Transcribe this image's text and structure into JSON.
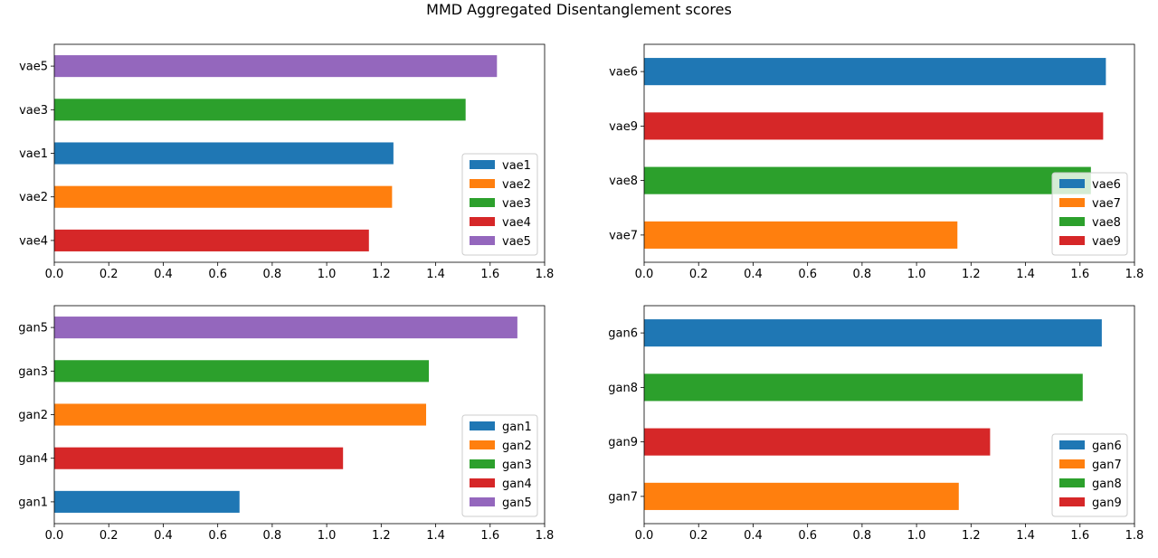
{
  "figure": {
    "suptitle": "MMD Aggregated Disentanglement scores"
  },
  "colors": {
    "blue": "#1f77b4",
    "orange": "#ff7f0e",
    "green": "#2ca02c",
    "red": "#d62728",
    "purple": "#9467bd"
  },
  "chart_data": [
    {
      "type": "bar",
      "orientation": "horizontal",
      "categories": [
        "vae4",
        "vae2",
        "vae1",
        "vae3",
        "vae5"
      ],
      "values": [
        1.155,
        1.24,
        1.245,
        1.51,
        1.625
      ],
      "bar_colors": [
        "#d62728",
        "#ff7f0e",
        "#1f77b4",
        "#2ca02c",
        "#9467bd"
      ],
      "xlim": [
        0,
        1.8
      ],
      "xticks": [
        "0.0",
        "0.2",
        "0.4",
        "0.6",
        "0.8",
        "1.0",
        "1.2",
        "1.4",
        "1.6",
        "1.8"
      ],
      "legend": {
        "position": "lower-right",
        "entries": [
          {
            "label": "vae1",
            "color": "#1f77b4"
          },
          {
            "label": "vae2",
            "color": "#ff7f0e"
          },
          {
            "label": "vae3",
            "color": "#2ca02c"
          },
          {
            "label": "vae4",
            "color": "#d62728"
          },
          {
            "label": "vae5",
            "color": "#9467bd"
          }
        ]
      },
      "grid": false
    },
    {
      "type": "bar",
      "orientation": "horizontal",
      "categories": [
        "vae7",
        "vae8",
        "vae9",
        "vae6"
      ],
      "values": [
        1.15,
        1.64,
        1.685,
        1.695
      ],
      "bar_colors": [
        "#ff7f0e",
        "#2ca02c",
        "#d62728",
        "#1f77b4"
      ],
      "xlim": [
        0,
        1.8
      ],
      "xticks": [
        "0.0",
        "0.2",
        "0.4",
        "0.6",
        "0.8",
        "1.0",
        "1.2",
        "1.4",
        "1.6",
        "1.8"
      ],
      "legend": {
        "position": "lower-right",
        "entries": [
          {
            "label": "vae6",
            "color": "#1f77b4"
          },
          {
            "label": "vae7",
            "color": "#ff7f0e"
          },
          {
            "label": "vae8",
            "color": "#2ca02c"
          },
          {
            "label": "vae9",
            "color": "#d62728"
          }
        ]
      },
      "grid": false
    },
    {
      "type": "bar",
      "orientation": "horizontal",
      "categories": [
        "gan1",
        "gan4",
        "gan2",
        "gan3",
        "gan5"
      ],
      "values": [
        0.68,
        1.06,
        1.365,
        1.375,
        1.7
      ],
      "bar_colors": [
        "#1f77b4",
        "#d62728",
        "#ff7f0e",
        "#2ca02c",
        "#9467bd"
      ],
      "xlim": [
        0,
        1.8
      ],
      "xticks": [
        "0.0",
        "0.2",
        "0.4",
        "0.6",
        "0.8",
        "1.0",
        "1.2",
        "1.4",
        "1.6",
        "1.8"
      ],
      "legend": {
        "position": "lower-right",
        "entries": [
          {
            "label": "gan1",
            "color": "#1f77b4"
          },
          {
            "label": "gan2",
            "color": "#ff7f0e"
          },
          {
            "label": "gan3",
            "color": "#2ca02c"
          },
          {
            "label": "gan4",
            "color": "#d62728"
          },
          {
            "label": "gan5",
            "color": "#9467bd"
          }
        ]
      },
      "grid": false
    },
    {
      "type": "bar",
      "orientation": "horizontal",
      "categories": [
        "gan7",
        "gan9",
        "gan8",
        "gan6"
      ],
      "values": [
        1.155,
        1.27,
        1.61,
        1.68
      ],
      "bar_colors": [
        "#ff7f0e",
        "#d62728",
        "#2ca02c",
        "#1f77b4"
      ],
      "xlim": [
        0,
        1.8
      ],
      "xticks": [
        "0.0",
        "0.2",
        "0.4",
        "0.6",
        "0.8",
        "1.0",
        "1.2",
        "1.4",
        "1.6",
        "1.8"
      ],
      "legend": {
        "position": "lower-right",
        "entries": [
          {
            "label": "gan6",
            "color": "#1f77b4"
          },
          {
            "label": "gan7",
            "color": "#ff7f0e"
          },
          {
            "label": "gan8",
            "color": "#2ca02c"
          },
          {
            "label": "gan9",
            "color": "#d62728"
          }
        ]
      },
      "grid": false
    }
  ]
}
